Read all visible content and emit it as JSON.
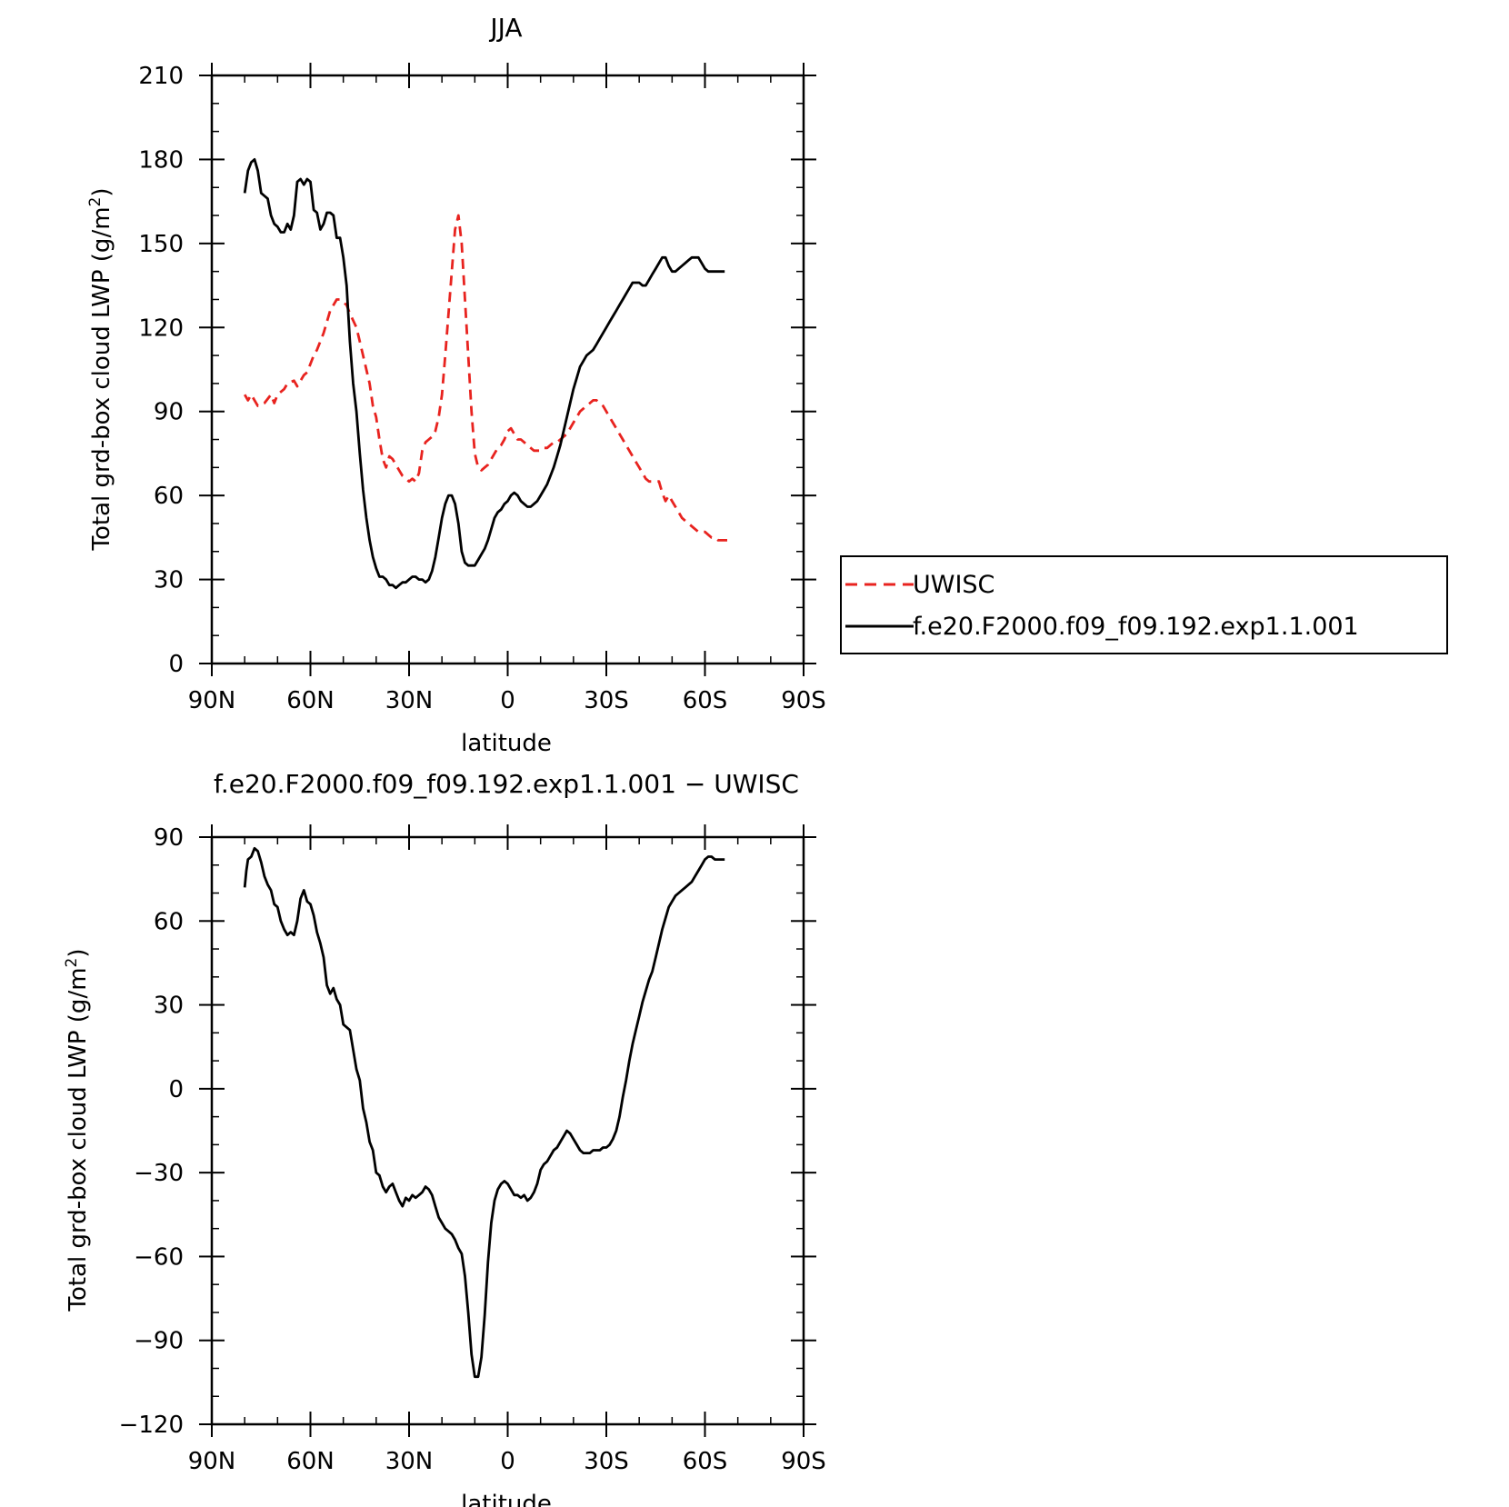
{
  "chart_data": [
    {
      "type": "line",
      "title": "JJA",
      "xlabel": "latitude",
      "ylabel": "Total grd-box cloud LWP (g/m²)",
      "ylabel_main": "Total grd-box cloud LWP (g/m",
      "ylabel_sup": "2",
      "ylabel_end": ")",
      "xlim": [
        90,
        -90
      ],
      "ylim": [
        0,
        210
      ],
      "xticks": [
        90,
        60,
        30,
        0,
        -30,
        -60,
        -90
      ],
      "xtick_labels": [
        "90N",
        "60N",
        "30N",
        "0",
        "30S",
        "60S",
        "90S"
      ],
      "yticks": [
        0,
        30,
        60,
        90,
        120,
        150,
        180,
        210
      ],
      "ytick_labels": [
        "0",
        "30",
        "60",
        "90",
        "120",
        "150",
        "180",
        "210"
      ],
      "legend": {
        "placement": "right",
        "entries": [
          "UWISC",
          "f.e20.F2000.f09_f09.192.exp1.1.001"
        ]
      },
      "series": [
        {
          "name": "UWISC",
          "color": "#e8231f",
          "dash": "dashed",
          "x": [
            80,
            79,
            78,
            77,
            76,
            74,
            72,
            71,
            70,
            68,
            67,
            65,
            64,
            62,
            61,
            59,
            58,
            56,
            54,
            52,
            51,
            50,
            49,
            48,
            46,
            45,
            44,
            43,
            42,
            41,
            40,
            39,
            38,
            37,
            36,
            35,
            34,
            33,
            32,
            31,
            30,
            29,
            28,
            27,
            26,
            25,
            24,
            23,
            22,
            21,
            20,
            19,
            18,
            17,
            16,
            15,
            14,
            13,
            12,
            11,
            10,
            9,
            8,
            7,
            6,
            5,
            4,
            3,
            2,
            1,
            0,
            -1,
            -2,
            -3,
            -4,
            -5,
            -6,
            -7,
            -8,
            -9,
            -10,
            -11,
            -12,
            -13,
            -14,
            -15,
            -16,
            -17,
            -18,
            -19,
            -20,
            -21,
            -22,
            -23,
            -24,
            -25,
            -26,
            -27,
            -28,
            -29,
            -30,
            -31,
            -32,
            -33,
            -34,
            -35,
            -36,
            -37,
            -38,
            -39,
            -40,
            -41,
            -42,
            -43,
            -44,
            -45,
            -46,
            -47,
            -48,
            -49,
            -50,
            -51,
            -52,
            -53,
            -54,
            -55,
            -56,
            -57,
            -58,
            -59,
            -60,
            -61,
            -62,
            -63,
            -64,
            -65,
            -66,
            -67,
            -68
          ],
          "y": [
            96,
            94,
            96,
            94,
            92,
            93,
            96,
            93,
            96,
            98,
            100,
            101,
            99,
            103,
            104,
            110,
            112,
            118,
            126,
            130,
            130,
            129,
            128,
            125,
            120,
            115,
            110,
            105,
            100,
            92,
            88,
            80,
            73,
            70,
            74,
            73,
            71,
            69,
            67,
            66,
            65,
            66,
            65,
            68,
            76,
            79,
            80,
            81,
            83,
            88,
            96,
            110,
            125,
            140,
            155,
            160,
            150,
            130,
            110,
            90,
            75,
            70,
            69,
            70,
            71,
            73,
            75,
            77,
            78,
            80,
            83,
            84,
            82,
            80,
            80,
            79,
            78,
            77,
            76,
            76,
            76,
            77,
            77,
            78,
            79,
            79,
            80,
            81,
            82,
            84,
            86,
            88,
            90,
            91,
            92,
            93,
            94,
            94,
            93,
            92,
            90,
            88,
            86,
            84,
            82,
            80,
            78,
            76,
            74,
            72,
            70,
            68,
            66,
            65,
            65,
            65,
            65,
            61,
            58,
            60,
            58,
            56,
            54,
            52,
            51,
            50,
            49,
            48,
            47,
            47,
            47,
            46,
            45,
            45,
            44,
            44,
            44,
            44,
            44
          ],
          "x_end": -68
        },
        {
          "name": "f.e20.F2000.f09_f09.192.exp1.1.001",
          "color": "#000000",
          "dash": "solid",
          "x": [
            80,
            79.5,
            79,
            78,
            77,
            76,
            75,
            74,
            73,
            72,
            71,
            70,
            69,
            68,
            67,
            66,
            65,
            64,
            63,
            62,
            61,
            60,
            59,
            58,
            57,
            56,
            55,
            54,
            53,
            52,
            51,
            50,
            49,
            48,
            47,
            46,
            45,
            44,
            43,
            42,
            41,
            40,
            39,
            38,
            37,
            36,
            35,
            34,
            33,
            32,
            31,
            30,
            29,
            28,
            27,
            26,
            25,
            24,
            23,
            22,
            21,
            20,
            19,
            18,
            17,
            16,
            15,
            14,
            13,
            12,
            11,
            10,
            9,
            8,
            7,
            6,
            5,
            4,
            3,
            2,
            1,
            0,
            -1,
            -2,
            -3,
            -4,
            -5,
            -6,
            -7,
            -8,
            -9,
            -10,
            -11,
            -12,
            -13,
            -14,
            -15,
            -16,
            -17,
            -18,
            -19,
            -20,
            -21,
            -22,
            -23,
            -24,
            -25,
            -26,
            -27,
            -28,
            -29,
            -30,
            -31,
            -32,
            -33,
            -34,
            -35,
            -36,
            -37,
            -38,
            -39,
            -40,
            -41,
            -42,
            -43,
            -44,
            -45,
            -46,
            -47,
            -48,
            -49,
            -50,
            -51,
            -52,
            -53,
            -54,
            -55,
            -56,
            -57,
            -58,
            -59,
            -60,
            -61,
            -62,
            -63,
            -64,
            -65,
            -66
          ],
          "y": [
            168,
            172,
            176,
            179,
            180,
            176,
            168,
            167,
            166,
            160,
            157,
            156,
            154,
            154,
            157,
            155,
            160,
            172,
            173,
            171,
            173,
            172,
            162,
            161,
            155,
            157,
            161,
            161,
            160,
            152,
            152,
            145,
            135,
            115,
            100,
            90,
            75,
            62,
            52,
            44,
            38,
            34,
            31,
            31,
            30,
            28,
            28,
            27,
            28,
            29,
            29,
            30,
            31,
            31,
            30,
            30,
            29,
            30,
            33,
            38,
            45,
            52,
            57,
            60,
            60,
            57,
            50,
            40,
            36,
            35,
            35,
            35,
            37,
            39,
            41,
            44,
            48,
            52,
            54,
            55,
            57,
            58,
            60,
            61,
            60,
            58,
            57,
            56,
            56,
            57,
            58,
            60,
            62,
            64,
            67,
            70,
            74,
            78,
            83,
            88,
            93,
            98,
            102,
            106,
            108,
            110,
            111,
            112,
            114,
            116,
            118,
            120,
            122,
            124,
            126,
            128,
            130,
            132,
            134,
            136,
            136,
            136,
            135,
            135,
            137,
            139,
            141,
            143,
            145,
            145,
            142,
            140,
            140,
            141,
            142,
            143,
            144,
            145,
            145,
            145,
            143,
            141,
            140,
            140,
            140,
            140,
            140,
            140
          ]
        }
      ]
    },
    {
      "type": "line",
      "title": "f.e20.F2000.f09_f09.192.exp1.1.001  −  UWISC",
      "xlabel": "latitude",
      "ylabel": "Total grd-box cloud LWP (g/m²)",
      "ylabel_main": "Total grd-box cloud LWP (g/m",
      "ylabel_sup": "2",
      "ylabel_end": ")",
      "xlim": [
        90,
        -90
      ],
      "ylim": [
        -120,
        90
      ],
      "xticks": [
        90,
        60,
        30,
        0,
        -30,
        -60,
        -90
      ],
      "xtick_labels": [
        "90N",
        "60N",
        "30N",
        "0",
        "30S",
        "60S",
        "90S"
      ],
      "yticks": [
        -120,
        -90,
        -60,
        -30,
        0,
        30,
        60,
        90
      ],
      "ytick_labels": [
        "−120",
        "−90",
        "−60",
        "−30",
        "0",
        "30",
        "60",
        "90"
      ],
      "series": [
        {
          "color": "#000000",
          "dash": "solid",
          "x": [
            80,
            79.5,
            79,
            78,
            77,
            76,
            75,
            74,
            73,
            72,
            71,
            70,
            69,
            68,
            67,
            66,
            65,
            64,
            63,
            62,
            61,
            60,
            59,
            58,
            57,
            56,
            55,
            54,
            53,
            52,
            51,
            50,
            49,
            48,
            47,
            46,
            45,
            44,
            43,
            42,
            41,
            40,
            39,
            38,
            37,
            36,
            35,
            34,
            33,
            32,
            31,
            30,
            29,
            28,
            27,
            26,
            25,
            24,
            23,
            22,
            21,
            20,
            19,
            18,
            17,
            16,
            15,
            14,
            13,
            12,
            11,
            10,
            9,
            8,
            7,
            6,
            5,
            4,
            3,
            2,
            1,
            0,
            -1,
            -2,
            -3,
            -4,
            -5,
            -6,
            -7,
            -8,
            -9,
            -10,
            -11,
            -12,
            -13,
            -14,
            -15,
            -16,
            -17,
            -18,
            -19,
            -20,
            -21,
            -22,
            -23,
            -24,
            -25,
            -26,
            -27,
            -28,
            -29,
            -30,
            -31,
            -32,
            -33,
            -34,
            -35,
            -36,
            -37,
            -38,
            -39,
            -40,
            -41,
            -42,
            -43,
            -44,
            -45,
            -46,
            -47,
            -48,
            -49,
            -50,
            -51,
            -52,
            -53,
            -54,
            -55,
            -56,
            -57,
            -58,
            -59,
            -60,
            -61,
            -62,
            -63,
            -64,
            -65,
            -66
          ],
          "y": [
            72,
            78,
            82,
            83,
            86,
            85,
            81,
            76,
            73,
            71,
            66,
            65,
            60,
            57,
            55,
            56,
            55,
            60,
            68,
            71,
            67,
            66,
            62,
            56,
            52,
            47,
            37,
            34,
            36,
            32,
            30,
            23,
            22,
            21,
            14,
            7,
            3,
            -7,
            -12,
            -19,
            -22,
            -30,
            -31,
            -35,
            -37,
            -35,
            -34,
            -37,
            -40,
            -42,
            -39,
            -40,
            -38,
            -39,
            -38,
            -37,
            -35,
            -36,
            -38,
            -42,
            -46,
            -48,
            -50,
            -51,
            -52,
            -54,
            -57,
            -59,
            -67,
            -80,
            -95,
            -103,
            -103,
            -96,
            -81,
            -62,
            -48,
            -40,
            -36,
            -34,
            -33,
            -34,
            -36,
            -38,
            -38,
            -39,
            -38,
            -40,
            -39,
            -37,
            -34,
            -29,
            -27,
            -26,
            -24,
            -22,
            -21,
            -19,
            -17,
            -15,
            -16,
            -18,
            -20,
            -22,
            -23,
            -23,
            -23,
            -22,
            -22,
            -22,
            -21,
            -21,
            -20,
            -18,
            -15,
            -10,
            -3,
            3,
            10,
            16,
            21,
            26,
            31,
            35,
            39,
            42,
            47,
            52,
            57,
            61,
            65,
            67,
            69,
            70,
            71,
            72,
            73,
            74,
            76,
            78,
            80,
            82,
            83,
            83,
            82,
            82,
            82,
            82
          ]
        }
      ]
    }
  ]
}
